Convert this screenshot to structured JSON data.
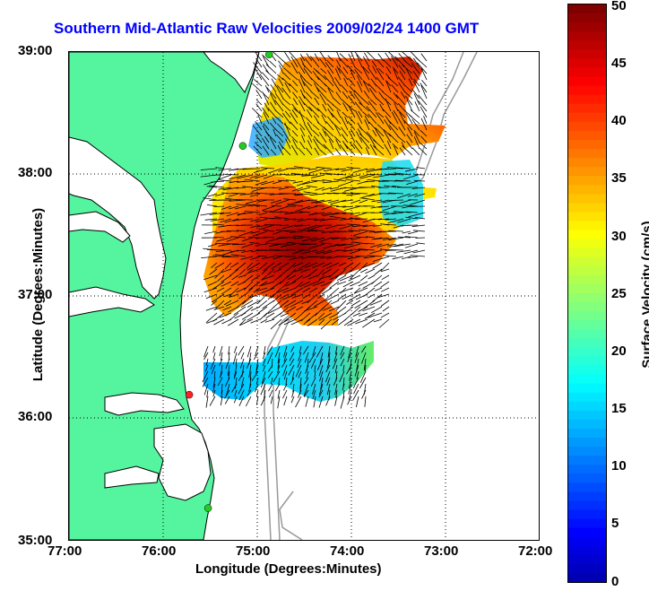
{
  "title": "Southern Mid-Atlantic Raw Velocities 2009/02/24 1400 GMT",
  "axes": {
    "xlabel": "Longitude (Degrees:Minutes)",
    "ylabel": "Latitude (Degrees:Minutes)",
    "x_ticks": [
      "77:00",
      "76:00",
      "75:00",
      "74:00",
      "73:00",
      "72:00"
    ],
    "y_ticks": [
      "39:00",
      "38:00",
      "37:00",
      "36:00",
      "35:00"
    ]
  },
  "colorbar": {
    "label": "Surface Velocity (cm/s)",
    "ticks": [
      "50",
      "45",
      "40",
      "35",
      "30",
      "25",
      "20",
      "15",
      "10",
      "5",
      "0"
    ],
    "range": [
      0,
      50
    ]
  },
  "colors": {
    "land": "#55f5a0",
    "water": "#ffffff",
    "coast": "#000000",
    "bathymetry": "#999999",
    "title": "#0000ff",
    "station_green": "#22cc22",
    "station_red": "#ff2222"
  },
  "map": {
    "lon_range": [
      -77,
      -72
    ],
    "lat_range": [
      35,
      39
    ],
    "grid": "dotted",
    "stations": [
      {
        "lon": -74.87,
        "lat": 38.98,
        "color": "green"
      },
      {
        "lon": -75.15,
        "lat": 38.23,
        "color": "green"
      },
      {
        "lon": -75.72,
        "lat": 36.19,
        "color": "red"
      },
      {
        "lon": -75.52,
        "lat": 35.26,
        "color": "green"
      }
    ]
  }
}
